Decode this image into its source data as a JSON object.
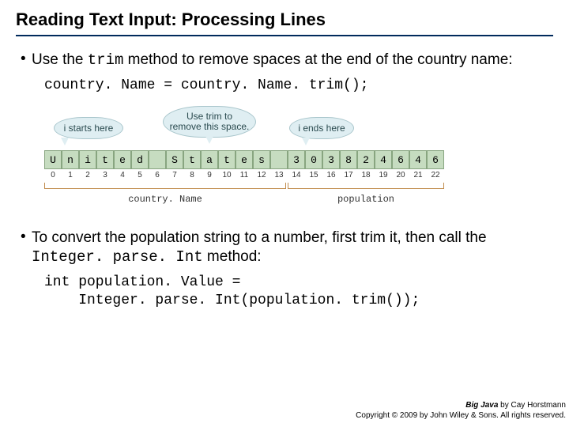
{
  "title": "Reading Text Input: Processing Lines",
  "bullet1_pre": "Use the ",
  "bullet1_mono": "trim",
  "bullet1_post": " method to remove spaces at the end of the country name:",
  "code1": "country. Name = country. Name. trim();",
  "callout1": "i starts here",
  "callout2": "Use trim to\nremove this space.",
  "callout3": "i ends here",
  "chars": [
    "U",
    "n",
    "i",
    "t",
    "e",
    "d",
    " ",
    "S",
    "t",
    "a",
    "t",
    "e",
    "s",
    " ",
    "3",
    "0",
    "3",
    "8",
    "2",
    "4",
    "6",
    "4",
    "6"
  ],
  "indices": [
    "0",
    "1",
    "2",
    "3",
    "4",
    "5",
    "6",
    "7",
    "8",
    "9",
    "10",
    "11",
    "12",
    "13",
    "14",
    "15",
    "16",
    "17",
    "18",
    "19",
    "20",
    "21",
    "22"
  ],
  "brace1_label": "country. Name",
  "brace2_label": "population",
  "bullet2_pre": "To convert the population string to a number, first trim it, then call the ",
  "bullet2_mono": "Integer. parse. Int",
  "bullet2_post": " method:",
  "code2": "int population. Value =\n    Integer. parse. Int(population. trim());",
  "footer_book": "Big Java",
  "footer_by": " by Cay Horstmann",
  "footer_line2": "Copyright © 2009 by John Wiley & Sons. All rights reserved.",
  "colors": {
    "underline": "#002a5c",
    "cell_bg": "#c6dcc0",
    "cell_border": "#88a580",
    "callout_bg": "#dfeef2",
    "brace": "#c08a4a"
  }
}
